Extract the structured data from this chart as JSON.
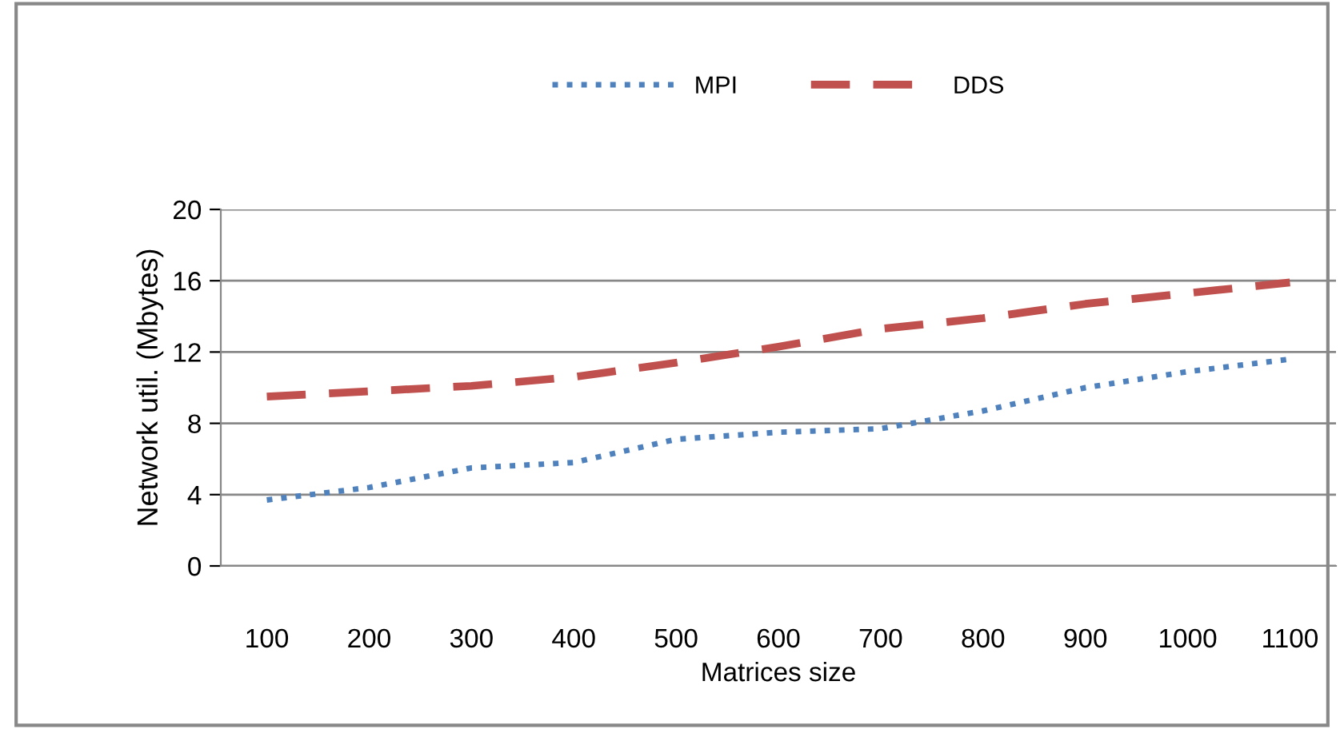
{
  "chart_data": {
    "type": "line",
    "xlabel": "Matrices size",
    "ylabel": "Network util. (Mbytes)",
    "categories": [
      "100",
      "200",
      "300",
      "400",
      "500",
      "600",
      "700",
      "800",
      "900",
      "1000",
      "1100"
    ],
    "series": [
      {
        "name": "MPI",
        "color": "#4f81bd",
        "line_style": "dotted",
        "values": [
          3.7,
          4.4,
          5.5,
          5.8,
          7.1,
          7.5,
          7.7,
          8.7,
          10.0,
          10.9,
          11.6
        ]
      },
      {
        "name": "DDS",
        "color": "#c0504d",
        "line_style": "dashed",
        "values": [
          9.5,
          9.8,
          10.1,
          10.6,
          11.4,
          12.3,
          13.3,
          13.9,
          14.7,
          15.3,
          15.9
        ]
      }
    ],
    "ylim": [
      0,
      20
    ],
    "yticks": [
      0,
      4,
      8,
      12,
      16,
      20
    ],
    "grid": "y",
    "legend": "top",
    "marker": "none"
  }
}
